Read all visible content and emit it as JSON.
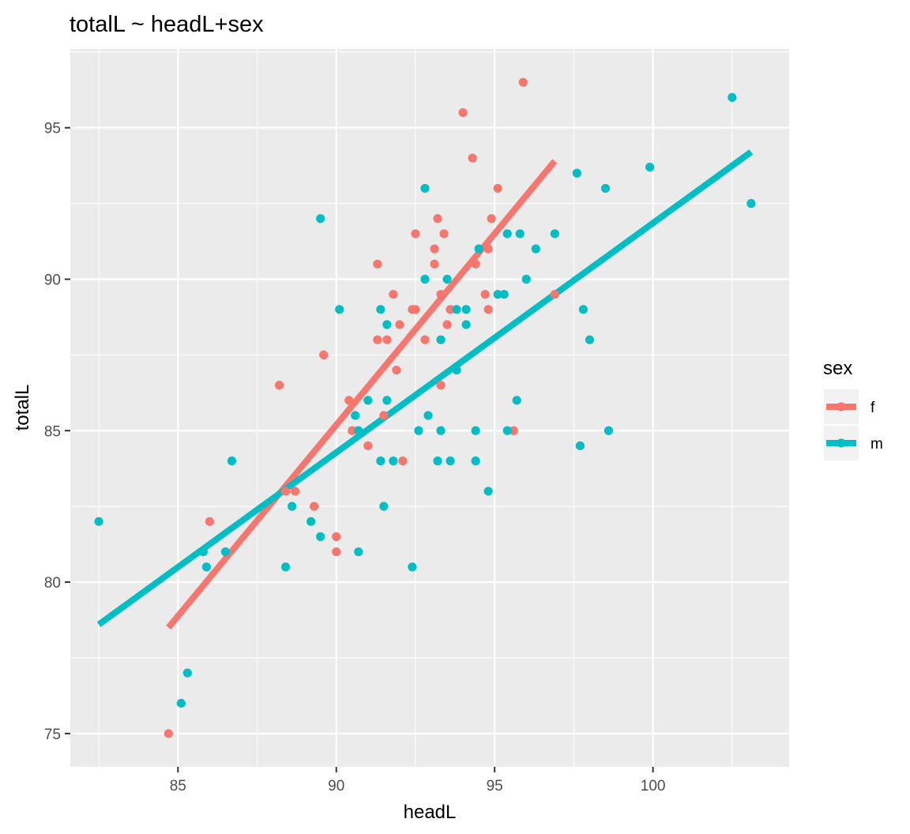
{
  "chart_data": {
    "type": "scatter",
    "title": "totalL ~ headL+sex",
    "xlabel": "headL",
    "ylabel": "totalL",
    "xlim": [
      81.6,
      104.3
    ],
    "ylim": [
      73.9,
      97.6
    ],
    "x_ticks": [
      85,
      90,
      95,
      100
    ],
    "y_ticks": [
      75,
      80,
      85,
      90,
      95
    ],
    "x_tick_labels": [
      "85",
      "90",
      "95",
      "100"
    ],
    "y_tick_labels": [
      "75",
      "80",
      "85",
      "90",
      "95"
    ],
    "grid": true,
    "legend": {
      "title": "sex",
      "position": "right",
      "entries": [
        {
          "label": "f",
          "color": "#F8766D"
        },
        {
          "label": "m",
          "color": "#00BFC4"
        }
      ]
    },
    "series": [
      {
        "name": "f",
        "color": "#F8766D",
        "points": [
          [
            84.7,
            75.0
          ],
          [
            86.0,
            82.0
          ],
          [
            88.2,
            86.5
          ],
          [
            88.4,
            83.0
          ],
          [
            88.7,
            83.0
          ],
          [
            89.3,
            82.5
          ],
          [
            89.6,
            87.5
          ],
          [
            90.0,
            81.5
          ],
          [
            90.0,
            81.0
          ],
          [
            90.4,
            86.0
          ],
          [
            90.5,
            85.0
          ],
          [
            91.0,
            84.5
          ],
          [
            91.3,
            90.5
          ],
          [
            91.3,
            88.0
          ],
          [
            91.5,
            85.5
          ],
          [
            91.6,
            88.0
          ],
          [
            91.8,
            89.5
          ],
          [
            91.9,
            87.0
          ],
          [
            92.0,
            88.5
          ],
          [
            92.1,
            84.0
          ],
          [
            92.4,
            89.0
          ],
          [
            92.5,
            91.5
          ],
          [
            92.5,
            89.0
          ],
          [
            92.8,
            88.0
          ],
          [
            93.1,
            91.0
          ],
          [
            93.1,
            90.5
          ],
          [
            93.2,
            92.0
          ],
          [
            93.3,
            89.5
          ],
          [
            93.3,
            86.5
          ],
          [
            93.4,
            91.5
          ],
          [
            93.5,
            88.5
          ],
          [
            93.6,
            89.0
          ],
          [
            94.0,
            95.5
          ],
          [
            94.3,
            94.0
          ],
          [
            94.4,
            90.5
          ],
          [
            94.7,
            89.5
          ],
          [
            94.8,
            91.0
          ],
          [
            94.8,
            89.0
          ],
          [
            94.9,
            92.0
          ],
          [
            95.1,
            93.0
          ],
          [
            95.6,
            85.0
          ],
          [
            95.9,
            96.5
          ],
          [
            96.9,
            89.5
          ]
        ],
        "fit": {
          "x": [
            84.7,
            96.9
          ],
          "y": [
            78.5,
            93.9
          ]
        }
      },
      {
        "name": "m",
        "color": "#00BFC4",
        "points": [
          [
            82.5,
            82.0
          ],
          [
            85.1,
            76.0
          ],
          [
            85.3,
            77.0
          ],
          [
            85.8,
            81.0
          ],
          [
            85.9,
            80.5
          ],
          [
            86.5,
            81.0
          ],
          [
            86.7,
            84.0
          ],
          [
            88.4,
            80.5
          ],
          [
            88.6,
            82.5
          ],
          [
            89.2,
            82.0
          ],
          [
            89.5,
            92.0
          ],
          [
            89.5,
            81.5
          ],
          [
            90.1,
            89.0
          ],
          [
            90.6,
            85.5
          ],
          [
            90.7,
            85.0
          ],
          [
            90.7,
            81.0
          ],
          [
            91.0,
            86.0
          ],
          [
            91.4,
            89.0
          ],
          [
            91.4,
            84.0
          ],
          [
            91.5,
            82.5
          ],
          [
            91.6,
            88.5
          ],
          [
            91.6,
            86.0
          ],
          [
            91.8,
            84.0
          ],
          [
            92.4,
            80.5
          ],
          [
            92.6,
            85.0
          ],
          [
            92.8,
            93.0
          ],
          [
            92.8,
            90.0
          ],
          [
            92.9,
            85.5
          ],
          [
            93.2,
            84.0
          ],
          [
            93.3,
            88.0
          ],
          [
            93.3,
            85.0
          ],
          [
            93.5,
            90.0
          ],
          [
            93.6,
            84.0
          ],
          [
            93.8,
            89.0
          ],
          [
            93.8,
            87.0
          ],
          [
            94.1,
            89.0
          ],
          [
            94.1,
            88.5
          ],
          [
            94.4,
            85.0
          ],
          [
            94.4,
            84.0
          ],
          [
            94.5,
            91.0
          ],
          [
            94.8,
            83.0
          ],
          [
            95.1,
            89.5
          ],
          [
            95.3,
            89.5
          ],
          [
            95.4,
            91.5
          ],
          [
            95.4,
            85.0
          ],
          [
            95.7,
            86.0
          ],
          [
            95.8,
            91.5
          ],
          [
            96.0,
            90.0
          ],
          [
            96.3,
            91.0
          ],
          [
            96.9,
            91.5
          ],
          [
            97.6,
            93.5
          ],
          [
            97.7,
            84.5
          ],
          [
            97.8,
            89.0
          ],
          [
            98.0,
            88.0
          ],
          [
            98.5,
            93.0
          ],
          [
            98.6,
            85.0
          ],
          [
            99.9,
            93.7
          ],
          [
            102.5,
            96.0
          ],
          [
            103.1,
            92.5
          ]
        ],
        "fit": {
          "x": [
            82.5,
            103.1
          ],
          "y": [
            78.6,
            94.2
          ]
        }
      }
    ]
  }
}
